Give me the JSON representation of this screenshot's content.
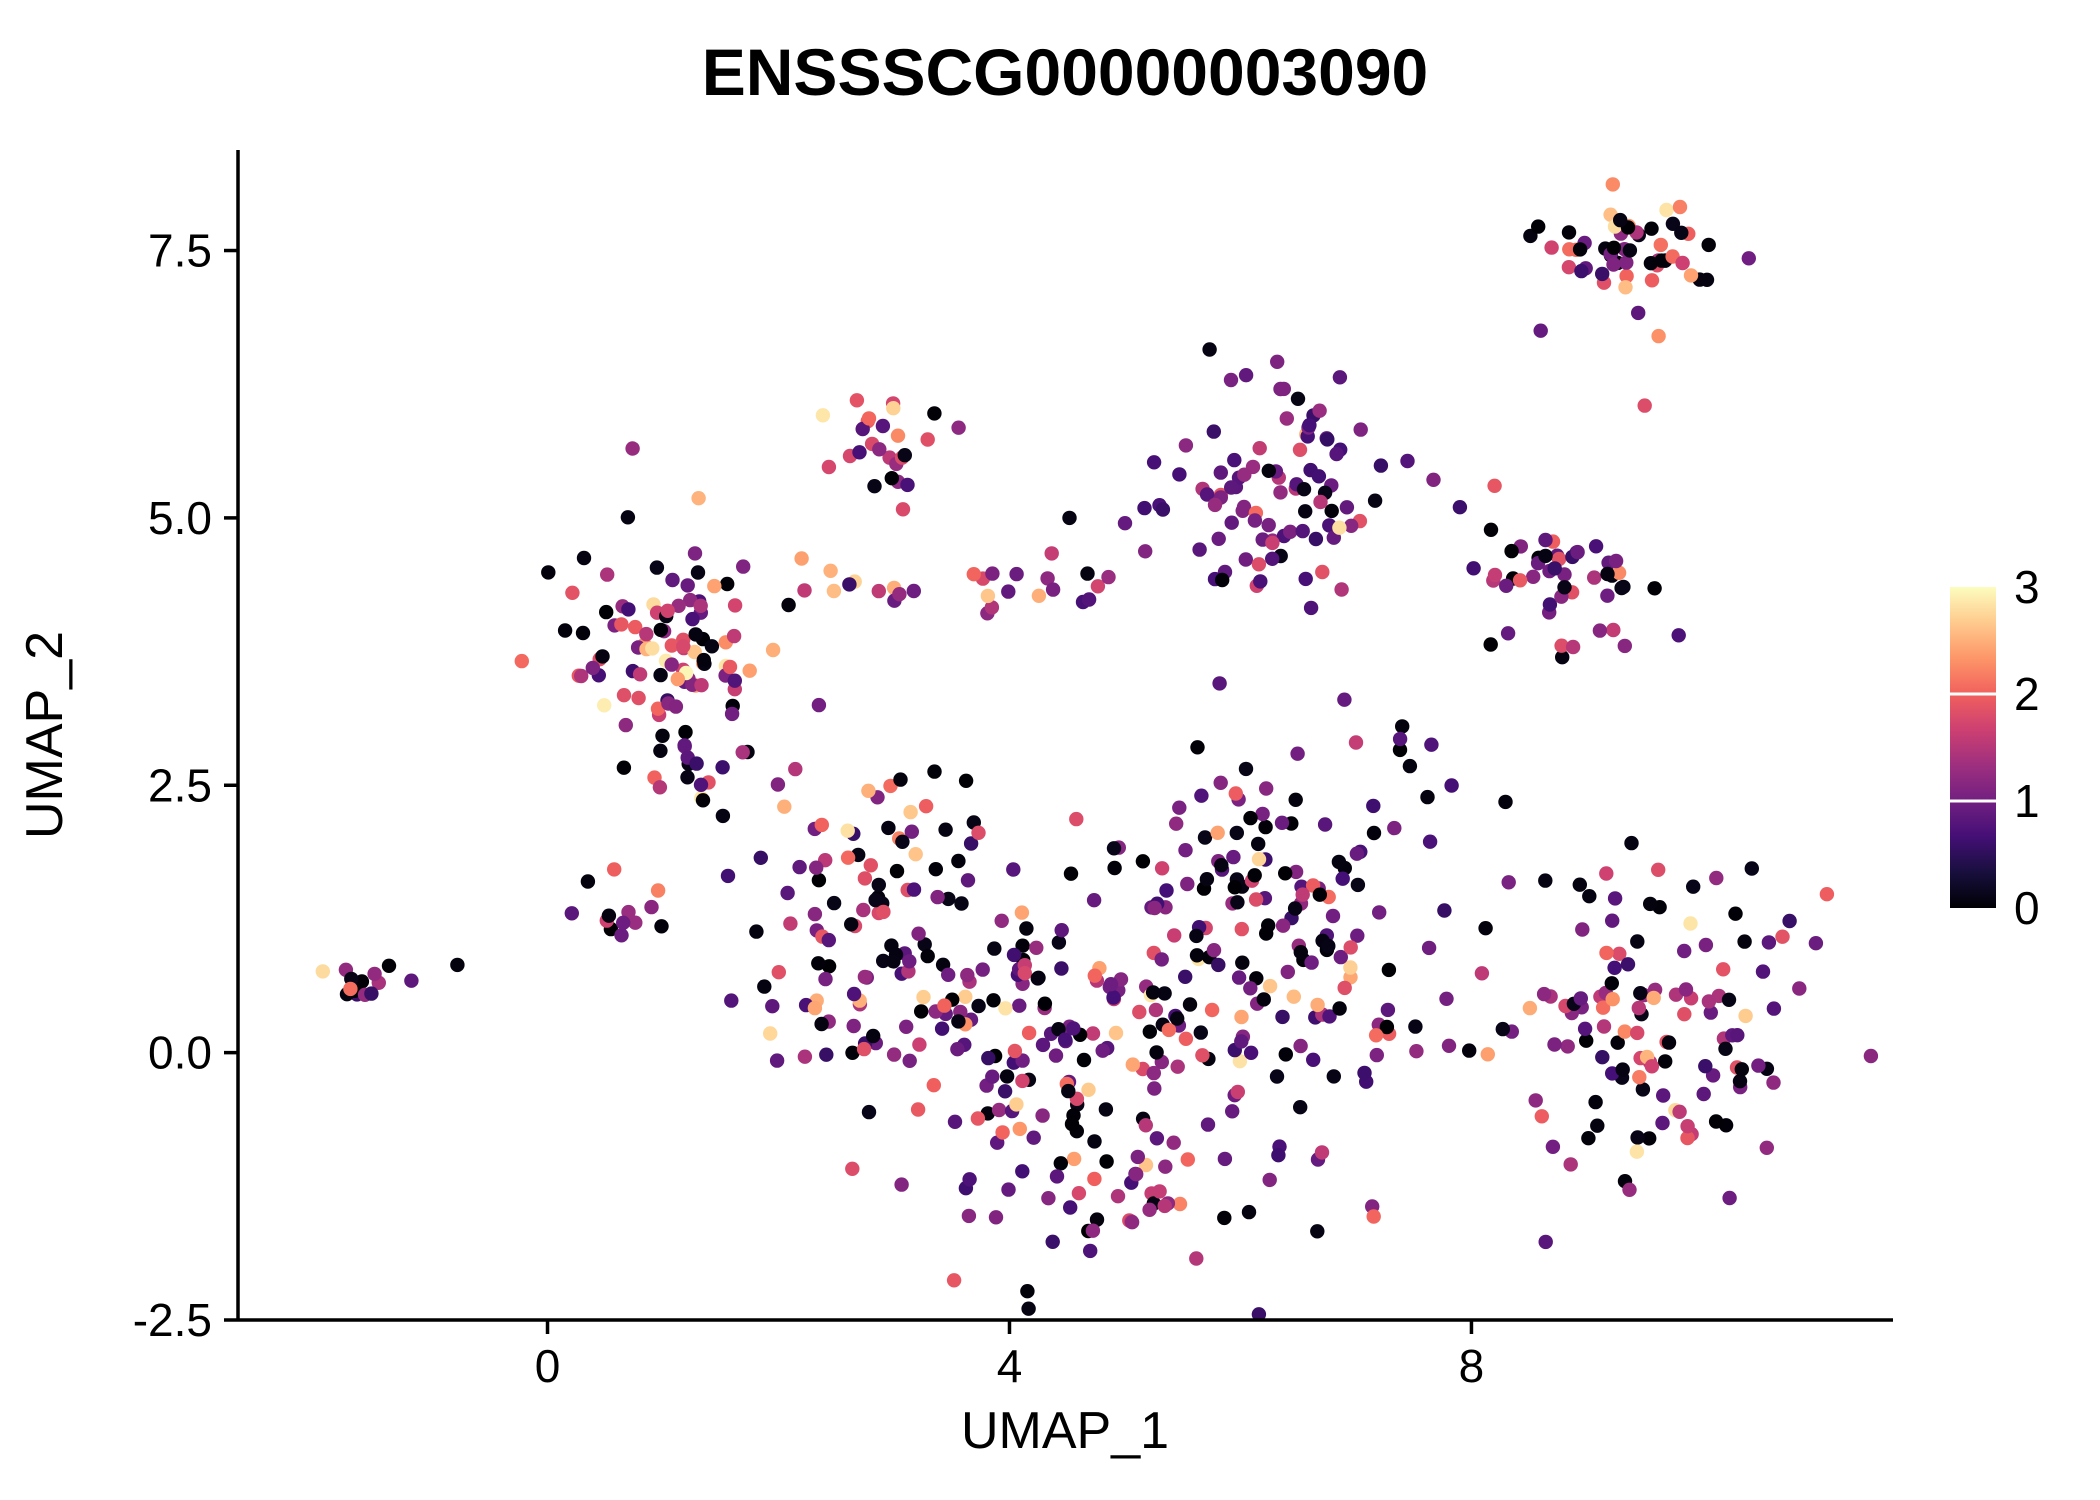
{
  "chart_data": {
    "type": "scatter",
    "title": "ENSSSCG00000003090",
    "xlabel": "UMAP_1",
    "ylabel": "UMAP_2",
    "xlim": [
      -2.68,
      11.65
    ],
    "ylim": [
      -2.5,
      8.44
    ],
    "x_ticks": [
      0,
      4,
      8
    ],
    "x_tick_labels": [
      "0",
      "4",
      "8"
    ],
    "y_ticks": [
      -2.5,
      0.0,
      2.5,
      5.0,
      7.5
    ],
    "y_tick_labels": [
      "-2.5",
      "0.0",
      "2.5",
      "5.0",
      "7.5"
    ],
    "grid": false,
    "background": "#ffffff",
    "point_radius": 7.2,
    "legend": {
      "position": "right",
      "min": 0,
      "max": 3,
      "ticks": [
        {
          "value": 3,
          "label": "3"
        },
        {
          "value": 2,
          "label": "2"
        },
        {
          "value": 1,
          "label": "1"
        },
        {
          "value": 0,
          "label": "0"
        }
      ]
    },
    "colormap": {
      "name": "magma",
      "stops": [
        "#000004",
        "#180f3d",
        "#440f76",
        "#721f81",
        "#9e2f7f",
        "#cd4071",
        "#f1605d",
        "#fd9668",
        "#feca8d",
        "#fcfdbf"
      ]
    },
    "value_bins": [
      {
        "lo": 0.0,
        "hi": 0.12
      },
      {
        "lo": 0.55,
        "hi": 1.3
      },
      {
        "lo": 1.4,
        "hi": 2.1
      },
      {
        "lo": 2.15,
        "hi": 2.9
      }
    ],
    "seed": 7,
    "clusters": [
      {
        "name": "far-left-island",
        "cx": -1.62,
        "cy": 0.68,
        "sx": 0.16,
        "sy": 0.11,
        "n": 14,
        "w": [
          0.3,
          0.4,
          0.22,
          0.08
        ]
      },
      {
        "name": "left-small",
        "cx": 0.55,
        "cy": 1.32,
        "sx": 0.22,
        "sy": 0.13,
        "n": 12,
        "w": [
          0.35,
          0.4,
          0.2,
          0.05
        ]
      },
      {
        "name": "upper-left-warm",
        "cx": 1.1,
        "cy": 3.85,
        "sx": 0.42,
        "sy": 0.55,
        "n": 95,
        "w": [
          0.22,
          0.3,
          0.3,
          0.18
        ]
      },
      {
        "name": "upper-left-tail",
        "cx": 1.35,
        "cy": 2.75,
        "sx": 0.25,
        "sy": 0.3,
        "n": 18,
        "w": [
          0.3,
          0.4,
          0.2,
          0.1
        ]
      },
      {
        "name": "mid-band",
        "cx": 3.9,
        "cy": 4.35,
        "sx": 0.8,
        "sy": 0.13,
        "n": 26,
        "w": [
          0.08,
          0.32,
          0.4,
          0.2
        ]
      },
      {
        "name": "top-middle",
        "cx": 3.0,
        "cy": 5.7,
        "sx": 0.28,
        "sy": 0.3,
        "n": 26,
        "w": [
          0.1,
          0.3,
          0.45,
          0.15
        ]
      },
      {
        "name": "upper-central-purple",
        "cx": 6.3,
        "cy": 5.25,
        "sx": 0.5,
        "sy": 0.5,
        "n": 95,
        "w": [
          0.12,
          0.62,
          0.2,
          0.06
        ]
      },
      {
        "name": "right-upper",
        "cx": 8.75,
        "cy": 4.35,
        "sx": 0.35,
        "sy": 0.33,
        "n": 48,
        "w": [
          0.32,
          0.4,
          0.22,
          0.06
        ]
      },
      {
        "name": "top-right",
        "cx": 9.4,
        "cy": 7.55,
        "sx": 0.45,
        "sy": 0.2,
        "n": 55,
        "w": [
          0.25,
          0.33,
          0.25,
          0.17
        ]
      },
      {
        "name": "central-left",
        "cx": 3.0,
        "cy": 1.1,
        "sx": 0.65,
        "sy": 0.8,
        "n": 115,
        "w": [
          0.3,
          0.4,
          0.22,
          0.08
        ]
      },
      {
        "name": "central",
        "cx": 4.8,
        "cy": 0.25,
        "sx": 0.95,
        "sy": 0.85,
        "n": 170,
        "w": [
          0.28,
          0.42,
          0.22,
          0.08
        ]
      },
      {
        "name": "central-right",
        "cx": 6.3,
        "cy": 1.5,
        "sx": 0.55,
        "sy": 0.65,
        "n": 85,
        "w": [
          0.25,
          0.5,
          0.2,
          0.05
        ]
      },
      {
        "name": "bottom-tail",
        "cx": 5.0,
        "cy": -1.35,
        "sx": 0.75,
        "sy": 0.3,
        "n": 40,
        "w": [
          0.3,
          0.45,
          0.2,
          0.05
        ]
      },
      {
        "name": "blob-right-edge",
        "cx": 7.05,
        "cy": 0.4,
        "sx": 0.35,
        "sy": 0.6,
        "n": 28,
        "w": [
          0.45,
          0.35,
          0.15,
          0.05
        ]
      },
      {
        "name": "bottom-right",
        "cx": 9.6,
        "cy": 0.45,
        "sx": 0.7,
        "sy": 0.75,
        "n": 130,
        "w": [
          0.35,
          0.38,
          0.22,
          0.05
        ]
      },
      {
        "name": "gap-scatter",
        "cx": 7.6,
        "cy": 2.6,
        "sx": 0.3,
        "sy": 0.4,
        "n": 8,
        "w": [
          0.4,
          0.4,
          0.2,
          0.0
        ]
      }
    ],
    "extra_points": [
      {
        "x": -0.78,
        "y": 0.82,
        "v": 0.05
      },
      {
        "x": 8.6,
        "y": 6.75,
        "v": 0.9
      },
      {
        "x": 9.62,
        "y": 6.7,
        "v": 2.3
      },
      {
        "x": 9.5,
        "y": 6.05,
        "v": 1.8
      },
      {
        "x": 4.52,
        "y": 5.0,
        "v": 0.08
      },
      {
        "x": 5.0,
        "y": 4.95,
        "v": 0.9
      },
      {
        "x": 2.2,
        "y": 4.62,
        "v": 2.4
      },
      {
        "x": 7.4,
        "y": 3.05,
        "v": 0.05
      },
      {
        "x": 2.35,
        "y": 3.25,
        "v": 1.0
      },
      {
        "x": 8.2,
        "y": 5.3,
        "v": 1.9
      },
      {
        "x": 7.9,
        "y": 5.1,
        "v": 0.6
      },
      {
        "x": 0.35,
        "y": 1.6,
        "v": 0.05
      },
      {
        "x": 2.05,
        "y": 2.3,
        "v": 2.5
      },
      {
        "x": 6.9,
        "y": 3.3,
        "v": 0.9
      },
      {
        "x": 7.0,
        "y": 2.9,
        "v": 1.6
      },
      {
        "x": 1.2,
        "y": 3.55,
        "v": 2.95
      }
    ]
  }
}
